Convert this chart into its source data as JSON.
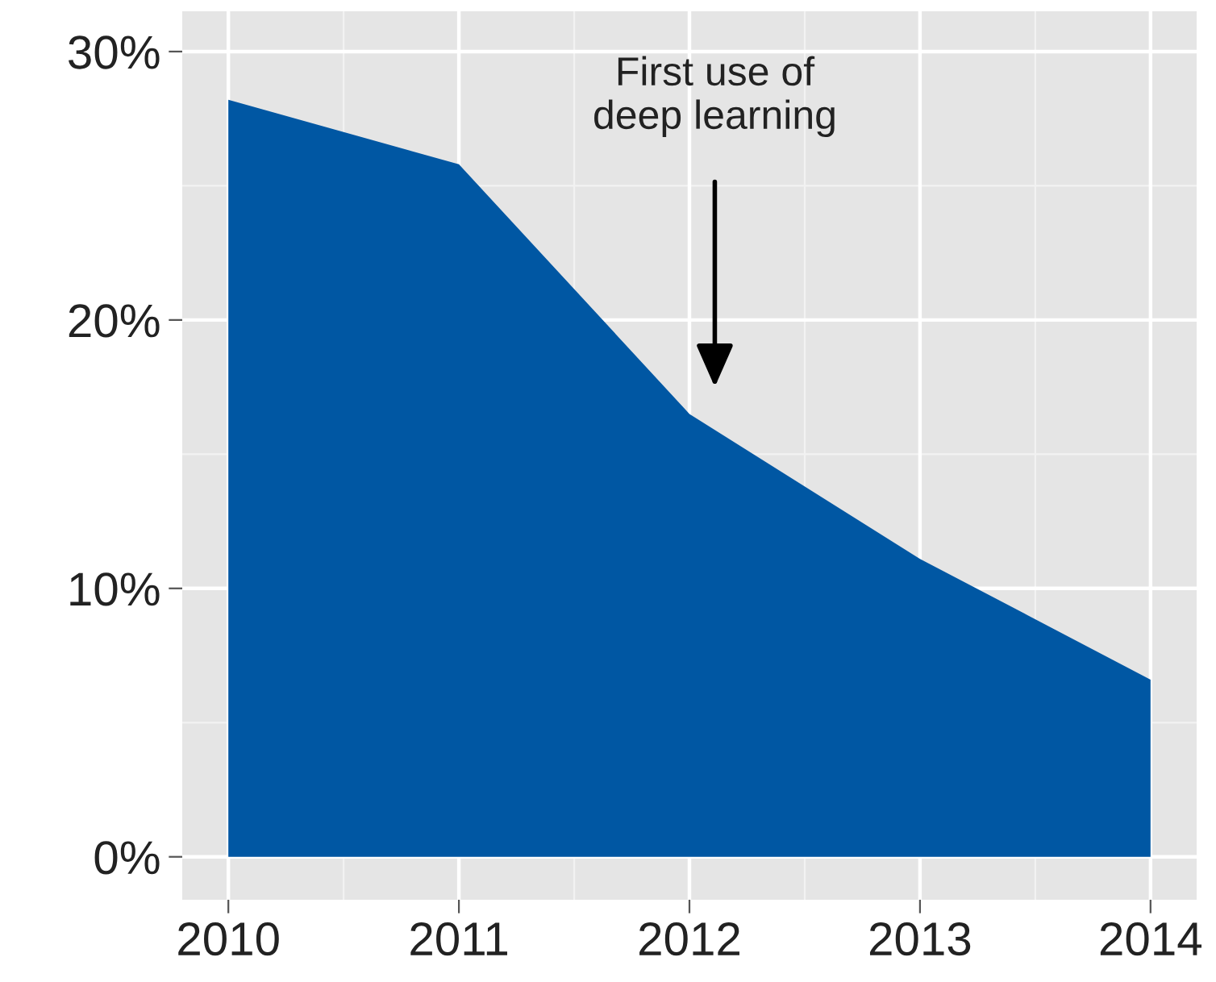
{
  "chart_data": {
    "type": "area",
    "x": [
      2010,
      2011,
      2012,
      2013,
      2014
    ],
    "series": [
      {
        "color": "#0057a3",
        "values": [
          28.2,
          25.8,
          16.5,
          11.1,
          6.6
        ]
      }
    ],
    "xlim": [
      2009.8,
      2014.2
    ],
    "xticks": [
      2010,
      2011,
      2012,
      2013,
      2014
    ],
    "ylim": [
      -1.6,
      31.5
    ],
    "yticks": [
      {
        "value": 0,
        "label": "0%"
      },
      {
        "value": 10,
        "label": "10%"
      },
      {
        "value": 20,
        "label": "20%"
      },
      {
        "value": 30,
        "label": "30%"
      }
    ],
    "grid": true,
    "annotations": [
      "First use of\ndeep learning"
    ]
  }
}
